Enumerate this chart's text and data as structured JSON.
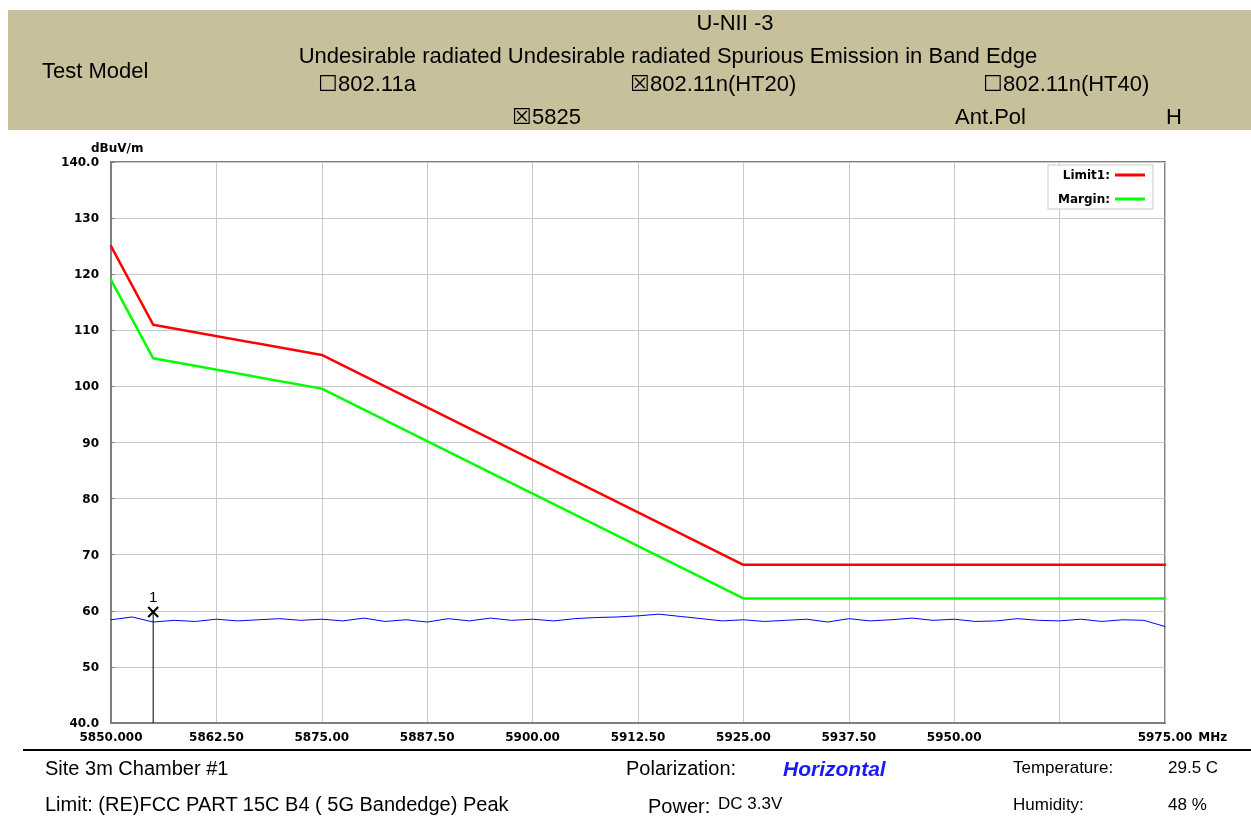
{
  "chart_data": {
    "type": "line",
    "title": "U-NII -3",
    "subtitle": "Undesirable radiated Undesirable radiated Spurious Emission in Band Edge",
    "xlabel": "MHz",
    "ylabel": "dBuV/m",
    "annotations": [
      "Test Model",
      "☐802.11a",
      "☒802.11n(HT20)",
      "☐802.11n(HT40)",
      "☒5825",
      "Ant.Pol",
      "H",
      "Site  3m Chamber #1",
      "Limit:  (RE)FCC PART 15C B4 ( 5G Bandedge) Peak",
      "Polarization:",
      "Horizontal",
      "Power:",
      "DC 3.3V",
      "Temperature:",
      "29.5 C",
      "Humidity:",
      "48 %",
      {
        "text": "1",
        "x": 5855,
        "y": 59.8
      }
    ],
    "xlim": [
      5850,
      5975
    ],
    "xticks": [
      {
        "value": 5850,
        "label": "5850.000"
      },
      {
        "value": 5862.5,
        "label": "5862.50"
      },
      {
        "value": 5875,
        "label": "5875.00"
      },
      {
        "value": 5887.5,
        "label": "5887.50"
      },
      {
        "value": 5900,
        "label": "5900.00"
      },
      {
        "value": 5912.5,
        "label": "5912.50"
      },
      {
        "value": 5925,
        "label": "5925.00"
      },
      {
        "value": 5937.5,
        "label": "5937.50"
      },
      {
        "value": 5950,
        "label": "5950.00"
      },
      {
        "value": 5962.5,
        "label": null
      },
      {
        "value": 5975,
        "label": "5975.00"
      }
    ],
    "ylim": [
      40,
      140
    ],
    "yticks": [
      {
        "value": 40,
        "label": "40.0"
      },
      50,
      60,
      70,
      80,
      90,
      100,
      110,
      120,
      130,
      {
        "value": 140,
        "label": "140.0"
      }
    ],
    "grid": true,
    "legend": "top right",
    "marker": "none",
    "line_style": "solid",
    "series": [
      {
        "name": "Limit1:",
        "color": "#ff0000",
        "x": [
          5850,
          5855,
          5875,
          5925,
          5975
        ],
        "values": [
          125,
          111,
          105.6,
          68.2,
          68.2
        ]
      },
      {
        "name": "Margin:",
        "color": "#00ff00",
        "x": [
          5850,
          5855,
          5875,
          5925,
          5975
        ],
        "values": [
          119,
          105,
          99.6,
          62.2,
          62.2
        ]
      },
      {
        "color": "#0000ff",
        "x": [
          5850,
          5852.5,
          5855,
          5857.5,
          5860,
          5862.5,
          5865,
          5867.5,
          5870,
          5872.5,
          5875,
          5877.5,
          5880,
          5882.5,
          5885,
          5887.5,
          5890,
          5892.5,
          5895,
          5897.5,
          5900,
          5902.5,
          5905,
          5907.5,
          5910,
          5912.5,
          5915,
          5917.5,
          5920,
          5922.5,
          5925,
          5927.5,
          5930,
          5932.5,
          5935,
          5937.5,
          5940,
          5942.5,
          5945,
          5947.5,
          5950,
          5952.5,
          5955,
          5957.5,
          5960,
          5962.5,
          5965,
          5967.5,
          5970,
          5972.5,
          5975
        ],
        "values": [
          58.4,
          58.9,
          58.0,
          58.3,
          58.1,
          58.5,
          58.2,
          58.4,
          58.6,
          58.3,
          58.5,
          58.2,
          58.7,
          58.1,
          58.4,
          58.0,
          58.6,
          58.2,
          58.7,
          58.3,
          58.5,
          58.2,
          58.6,
          58.8,
          58.9,
          59.1,
          59.4,
          59.0,
          58.6,
          58.2,
          58.4,
          58.1,
          58.3,
          58.5,
          58.0,
          58.6,
          58.2,
          58.4,
          58.7,
          58.3,
          58.5,
          58.1,
          58.2,
          58.6,
          58.3,
          58.2,
          58.5,
          58.1,
          58.4,
          58.3,
          57.2
        ]
      },
      {
        "type": "lollipop",
        "color": "#000000",
        "marker": "cross",
        "x": [
          5855
        ],
        "values": [
          59.8
        ]
      }
    ]
  }
}
